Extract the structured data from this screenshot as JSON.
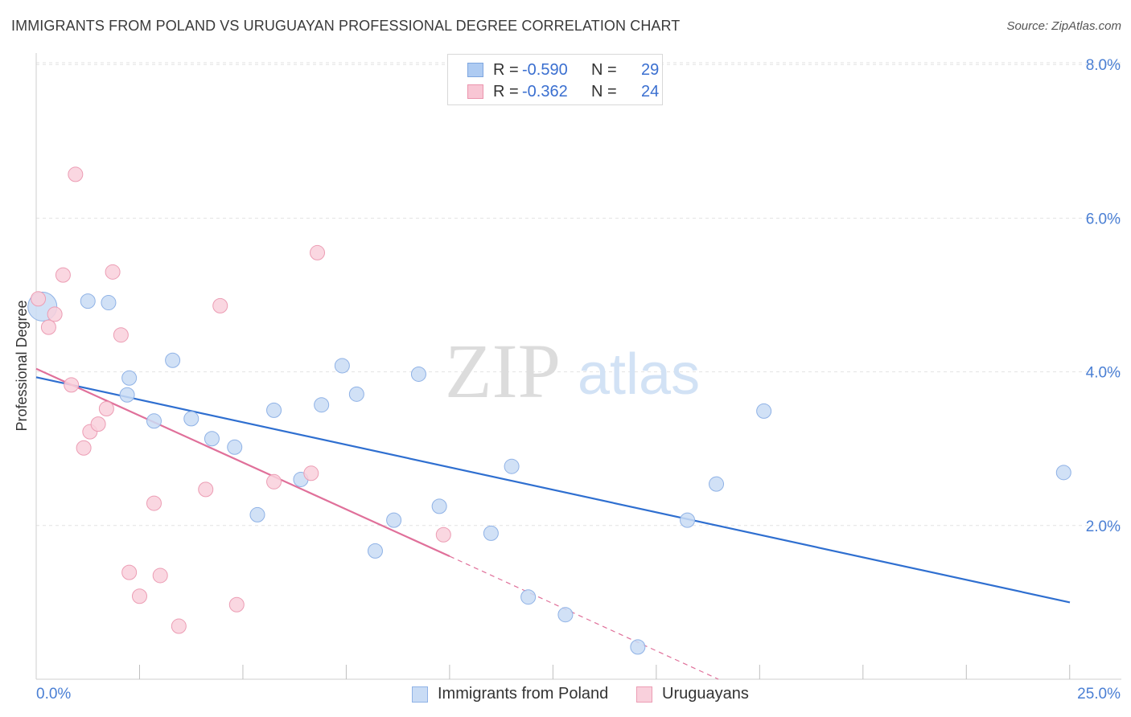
{
  "header": {
    "title": "IMMIGRANTS FROM POLAND VS URUGUAYAN PROFESSIONAL DEGREE CORRELATION CHART",
    "source": "Source: ZipAtlas.com"
  },
  "stats": [
    {
      "r_label": "R =",
      "r_value": "-0.590",
      "n_label": "N =",
      "n_value": "29",
      "color": "#aecbf2",
      "border": "#7ea6e0"
    },
    {
      "r_label": "R =",
      "r_value": "-0.362",
      "n_label": "N =",
      "n_value": "24",
      "color": "#f8c6d4",
      "border": "#eb94ad"
    }
  ],
  "watermark": {
    "zip": "ZIP",
    "atlas": "atlas"
  },
  "colors": {
    "blue_fill": "#c9dcf5",
    "blue_stroke": "#8fb2e6",
    "blue_line": "#2f6fd0",
    "pink_fill": "#f9d0dc",
    "pink_stroke": "#ec9db4",
    "pink_line": "#e0709a",
    "tick_label": "#4a7fd4",
    "grid": "#e3e3e3"
  },
  "chart_data": {
    "type": "scatter",
    "xlabel": "",
    "ylabel": "Professional Degree",
    "xlim": [
      0,
      25
    ],
    "ylim": [
      0,
      8.2
    ],
    "x_tick_labels": [
      "0.0%",
      "25.0%"
    ],
    "y_ticks": [
      2,
      4,
      6,
      8
    ],
    "y_tick_labels": [
      "2.0%",
      "4.0%",
      "6.0%",
      "8.0%"
    ],
    "grid": true,
    "legend": "bottom-center",
    "series": [
      {
        "name": "Immigrants from Poland",
        "color": "#c9dcf5",
        "points": [
          [
            0.15,
            4.85,
            18
          ],
          [
            1.25,
            4.92,
            9
          ],
          [
            1.75,
            4.9,
            9
          ],
          [
            2.2,
            3.7,
            9
          ],
          [
            2.25,
            3.92,
            9
          ],
          [
            2.85,
            3.36,
            9
          ],
          [
            3.3,
            4.15,
            9
          ],
          [
            3.75,
            3.39,
            9
          ],
          [
            4.25,
            3.13,
            9
          ],
          [
            4.8,
            3.02,
            9
          ],
          [
            5.35,
            2.14,
            9
          ],
          [
            5.75,
            3.5,
            9
          ],
          [
            6.4,
            2.6,
            9
          ],
          [
            6.9,
            3.57,
            9
          ],
          [
            7.4,
            4.08,
            9
          ],
          [
            7.75,
            3.71,
            9
          ],
          [
            8.2,
            1.67,
            9
          ],
          [
            8.65,
            2.07,
            9
          ],
          [
            9.25,
            3.97,
            9
          ],
          [
            9.75,
            2.25,
            9
          ],
          [
            11.0,
            1.9,
            9
          ],
          [
            11.5,
            2.77,
            9
          ],
          [
            11.9,
            1.07,
            9
          ],
          [
            12.8,
            0.84,
            9
          ],
          [
            14.55,
            0.42,
            9
          ],
          [
            15.75,
            2.07,
            9
          ],
          [
            16.45,
            2.54,
            9
          ],
          [
            17.6,
            3.49,
            9
          ],
          [
            24.85,
            2.69,
            9
          ]
        ],
        "trend": {
          "x1": 0,
          "y1": 3.93,
          "x2": 25,
          "y2": 1.0
        }
      },
      {
        "name": "Uruguayans",
        "color": "#f9d0dc",
        "points": [
          [
            0.05,
            4.95,
            9
          ],
          [
            0.3,
            4.58,
            9
          ],
          [
            0.45,
            4.75,
            9
          ],
          [
            0.65,
            5.26,
            9
          ],
          [
            0.85,
            3.83,
            9
          ],
          [
            0.95,
            6.57,
            9
          ],
          [
            1.15,
            3.01,
            9
          ],
          [
            1.3,
            3.22,
            9
          ],
          [
            1.5,
            3.32,
            9
          ],
          [
            1.7,
            3.52,
            9
          ],
          [
            1.85,
            5.3,
            9
          ],
          [
            2.05,
            4.48,
            9
          ],
          [
            2.25,
            1.39,
            9
          ],
          [
            2.5,
            1.08,
            9
          ],
          [
            2.85,
            2.29,
            9
          ],
          [
            3.0,
            1.35,
            9
          ],
          [
            3.45,
            0.69,
            9
          ],
          [
            4.1,
            2.47,
            9
          ],
          [
            4.45,
            4.86,
            9
          ],
          [
            4.85,
            0.97,
            9
          ],
          [
            5.75,
            2.57,
            9
          ],
          [
            6.65,
            2.68,
            9
          ],
          [
            6.8,
            5.55,
            9
          ],
          [
            9.85,
            1.88,
            9
          ]
        ],
        "trend": {
          "x1": 0,
          "y1": 4.04,
          "x2": 10,
          "y2": 1.6
        },
        "trend_dashed": {
          "x1": 10,
          "y1": 1.6,
          "x2": 16.5,
          "y2": 0.0
        }
      }
    ]
  }
}
